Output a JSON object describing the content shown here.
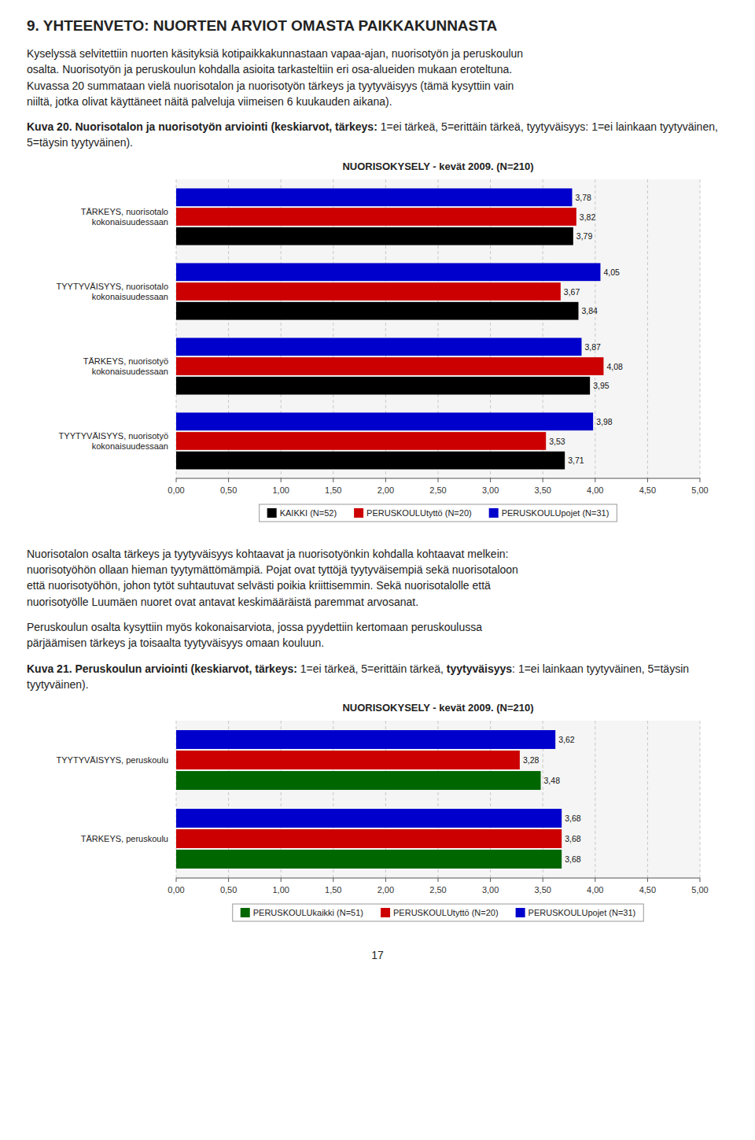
{
  "title": "9. YHTEENVETO: NUORTEN ARVIOT OMASTA PAIKKAKUNNASTA",
  "paragraphs": [
    "Kyselyssä selvitettiin nuorten käsityksiä kotipaikkakunnastaan vapaa-ajan, nuorisotyön ja peruskoulun\nosalta. Nuorisotyön ja peruskoulun kohdalla asioita tarkasteltiin eri osa-alueiden mukaan eroteltuna.\nKuvassa 20 summataan vielä nuorisotalon ja nuorisotyön tärkeys ja tyytyväisyys (tämä kysyttiin vain\nniiltä, jotka olivat käyttäneet näitä palveluja viimeisen 6 kuukauden aikana).",
    "Nuorisotalon osalta tärkeys ja tyytyväisyys kohtaavat ja nuorisotyönkin kohdalla kohtaavat melkein:\nnuorisotyöhön ollaan hieman tyytymättömämpiä. Pojat ovat tyttöjä tyytyväisempiä sekä nuorisotaloon\nettä nuorisotyöhön, johon tytöt suhtautuvat selvästi poikia kriittisemmin. Sekä nuorisotalolle että\nnuorisotyölle Luumäen nuoret ovat antavat keskimääräistä paremmat arvosanat.",
    "Peruskoulun osalta kysyttiin myös kokonaisarviota, jossa pyydettiin kertomaan peruskoulussa\npärjäämisen tärkeys ja toisaalta tyytyväisyys omaan kouluun."
  ],
  "captions": [
    [
      {
        "text": "Kuva 20. Nuorisotalon ja nuorisotyön arviointi (keskiarvot, tärkeys:",
        "bold": true
      },
      {
        "text": " 1=ei tärkeä, 5=erittäin tärkeä,",
        "bold": false
      },
      {
        "text": " tyytyväisyys: 1=ei lainkaan tyytyväinen, 5=täysin tyytyväinen).",
        "bold": false
      }
    ],
    [
      {
        "text": "Kuva 21. Peruskoulun arviointi (keskiarvot, tärkeys:",
        "bold": true
      },
      {
        "text": " 1=ei tärkeä, 5=erittäin tärkeä, ",
        "bold": false
      },
      {
        "text": "tyytyväisyys",
        "bold": true
      },
      {
        "text": ": 1=ei lainkaan tyytyväinen, 5=täysin tyytyväinen).",
        "bold": false
      }
    ]
  ],
  "page_number": "17",
  "chart_data": [
    {
      "type": "bar",
      "orientation": "horizontal",
      "title": "NUORISOKYSELY - kevät 2009. (N=210)",
      "categories": [
        "TÄRKEYS, nuorisotalo\nkokonaisuudessaan",
        "TYYTYVÄISYYS, nuorisotalo\nkokonaisuudessaan",
        "TÄRKEYS, nuorisotyö\nkokonaisuudessaan",
        "TYYTYVÄISYYS, nuorisotyö\nkokonaisuudessaan"
      ],
      "series": [
        {
          "name": "KAIKKI (N=52)",
          "color": "#000000",
          "values": [
            3.79,
            3.84,
            3.95,
            3.71
          ],
          "value_labels": [
            "3,79",
            "3,84",
            "3,95",
            "3,71"
          ]
        },
        {
          "name": "PERUSKOULUtyttö (N=20)",
          "color": "#cc0000",
          "values": [
            3.82,
            3.67,
            4.08,
            3.53
          ],
          "value_labels": [
            "3,82",
            "3,67",
            "4,08",
            "3,53"
          ]
        },
        {
          "name": "PERUSKOULUpojet (N=31)",
          "color": "#0000cc",
          "values": [
            3.78,
            4.05,
            3.87,
            3.98
          ],
          "value_labels": [
            "3,78",
            "4,05",
            "3,87",
            "3,98"
          ]
        }
      ],
      "xlim": [
        0,
        5.0
      ],
      "xticks": [
        {
          "value": 0.0,
          "label": "0,00"
        },
        {
          "value": 0.5,
          "label": "0,50"
        },
        {
          "value": 1.0,
          "label": "1,00"
        },
        {
          "value": 1.5,
          "label": "1,50"
        },
        {
          "value": 2.0,
          "label": "2,00"
        },
        {
          "value": 2.5,
          "label": "2,50"
        },
        {
          "value": 3.0,
          "label": "3,00"
        },
        {
          "value": 3.5,
          "label": "3,50"
        },
        {
          "value": 4.0,
          "label": "4,00"
        },
        {
          "value": 4.5,
          "label": "4,50"
        },
        {
          "value": 5.0,
          "label": "5,00"
        }
      ],
      "grid": true,
      "data_labels": true,
      "legend": "bottom"
    },
    {
      "type": "bar",
      "orientation": "horizontal",
      "title": "NUORISOKYSELY - kevät 2009. (N=210)",
      "categories": [
        "TYYTYVÄISYYS, peruskoulu",
        "TÄRKEYS, peruskoulu"
      ],
      "series": [
        {
          "name": "PERUSKOULUkaikki (N=51)",
          "color": "#006600",
          "values": [
            3.48,
            3.68
          ],
          "value_labels": [
            "3,48",
            "3,68"
          ]
        },
        {
          "name": "PERUSKOULUtyttö (N=20)",
          "color": "#cc0000",
          "values": [
            3.28,
            3.68
          ],
          "value_labels": [
            "3,28",
            "3,68"
          ]
        },
        {
          "name": "PERUSKOULUpojet (N=31)",
          "color": "#0000cc",
          "values": [
            3.62,
            3.68
          ],
          "value_labels": [
            "3,62",
            "3,68"
          ]
        }
      ],
      "xlim": [
        0,
        5.0
      ],
      "xticks": [
        {
          "value": 0.0,
          "label": "0,00"
        },
        {
          "value": 0.5,
          "label": "0,50"
        },
        {
          "value": 1.0,
          "label": "1,00"
        },
        {
          "value": 1.5,
          "label": "1,50"
        },
        {
          "value": 2.0,
          "label": "2,00"
        },
        {
          "value": 2.5,
          "label": "2,50"
        },
        {
          "value": 3.0,
          "label": "3,00"
        },
        {
          "value": 3.5,
          "label": "3,50"
        },
        {
          "value": 4.0,
          "label": "4,00"
        },
        {
          "value": 4.5,
          "label": "4,50"
        },
        {
          "value": 5.0,
          "label": "5,00"
        }
      ],
      "grid": true,
      "data_labels": true,
      "legend": "bottom"
    }
  ]
}
